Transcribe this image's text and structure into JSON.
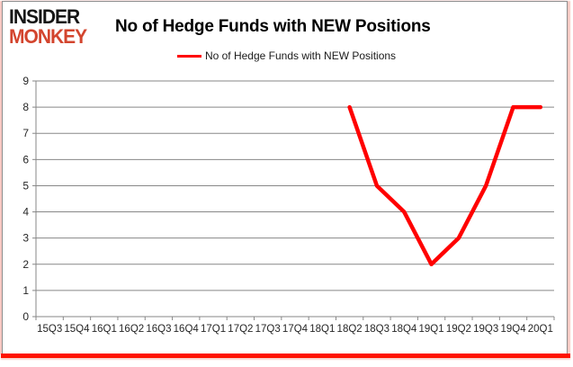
{
  "logo": {
    "line1": "INSIDER",
    "line2": "MONKEY"
  },
  "header": {
    "title": "No of Hedge Funds with NEW Positions"
  },
  "legend": {
    "label": "No of Hedge Funds with NEW Positions"
  },
  "colors": {
    "line": "#ff0000",
    "grid": "#878787",
    "axis": "#878787",
    "tick_text": "#262626",
    "logo_black": "#151515",
    "logo_red": "#d3452e",
    "bottom_bar": "#ff1200",
    "side_glow": "#f29d92",
    "frame_border": "#8e8e8e"
  },
  "chart_data": {
    "type": "line",
    "title": "No of Hedge Funds with NEW Positions",
    "legend_entries": [
      "No of Hedge Funds with NEW Positions"
    ],
    "legend_position": "top",
    "grid": true,
    "categories": [
      "15Q3",
      "15Q4",
      "16Q1",
      "16Q2",
      "16Q3",
      "16Q4",
      "17Q1",
      "17Q2",
      "17Q3",
      "17Q4",
      "18Q1",
      "18Q2",
      "18Q3",
      "18Q4",
      "19Q1",
      "19Q2",
      "19Q3",
      "19Q4",
      "20Q1"
    ],
    "series": [
      {
        "name": "No of Hedge Funds with NEW Positions",
        "color": "#ff0000",
        "values": [
          null,
          null,
          null,
          null,
          null,
          null,
          null,
          null,
          null,
          null,
          null,
          8,
          5,
          4,
          2,
          3,
          5,
          8,
          8
        ]
      }
    ],
    "xlabel": "",
    "ylabel": "",
    "ylim": [
      0,
      9
    ],
    "yticks": [
      0,
      1,
      2,
      3,
      4,
      5,
      6,
      7,
      8,
      9
    ]
  }
}
